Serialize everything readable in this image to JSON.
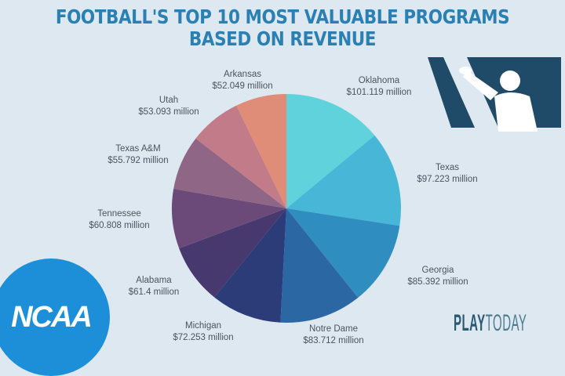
{
  "title_line1": "FOOTBALL'S TOP 10 MOST VALUABLE PROGRAMS",
  "title_line2": "BASED ON REVENUE",
  "logos": {
    "ncaa": "NCAA",
    "playtoday_a": "PLAY",
    "playtoday_b": "TODAY"
  },
  "chart_data": {
    "type": "pie",
    "title": "Football's Top 10 Most Valuable Programs Based on Revenue",
    "unit": "million USD",
    "categories": [
      "Oklahoma",
      "Texas",
      "Georgia",
      "Notre Dame",
      "Michigan",
      "Alabama",
      "Tennessee",
      "Texas A&M",
      "Utah",
      "Arkansas"
    ],
    "values": [
      101.119,
      97.223,
      85.392,
      83.712,
      72.253,
      61.4,
      60.808,
      55.792,
      53.093,
      52.049
    ],
    "labels": [
      "$101.119 million",
      "$97.223 million",
      "$85.392 million",
      "$83.712 million",
      "$72.253 million",
      "$61.4 million",
      "$60.808 million",
      "$55.792 million",
      "$53.093 million",
      "$52.049 million"
    ],
    "colors": [
      "#5fd2dc",
      "#48b6d6",
      "#2f8dbf",
      "#2b68a3",
      "#2c3c78",
      "#47386e",
      "#6b4a79",
      "#906686",
      "#c27b89",
      "#df8c78"
    ]
  }
}
